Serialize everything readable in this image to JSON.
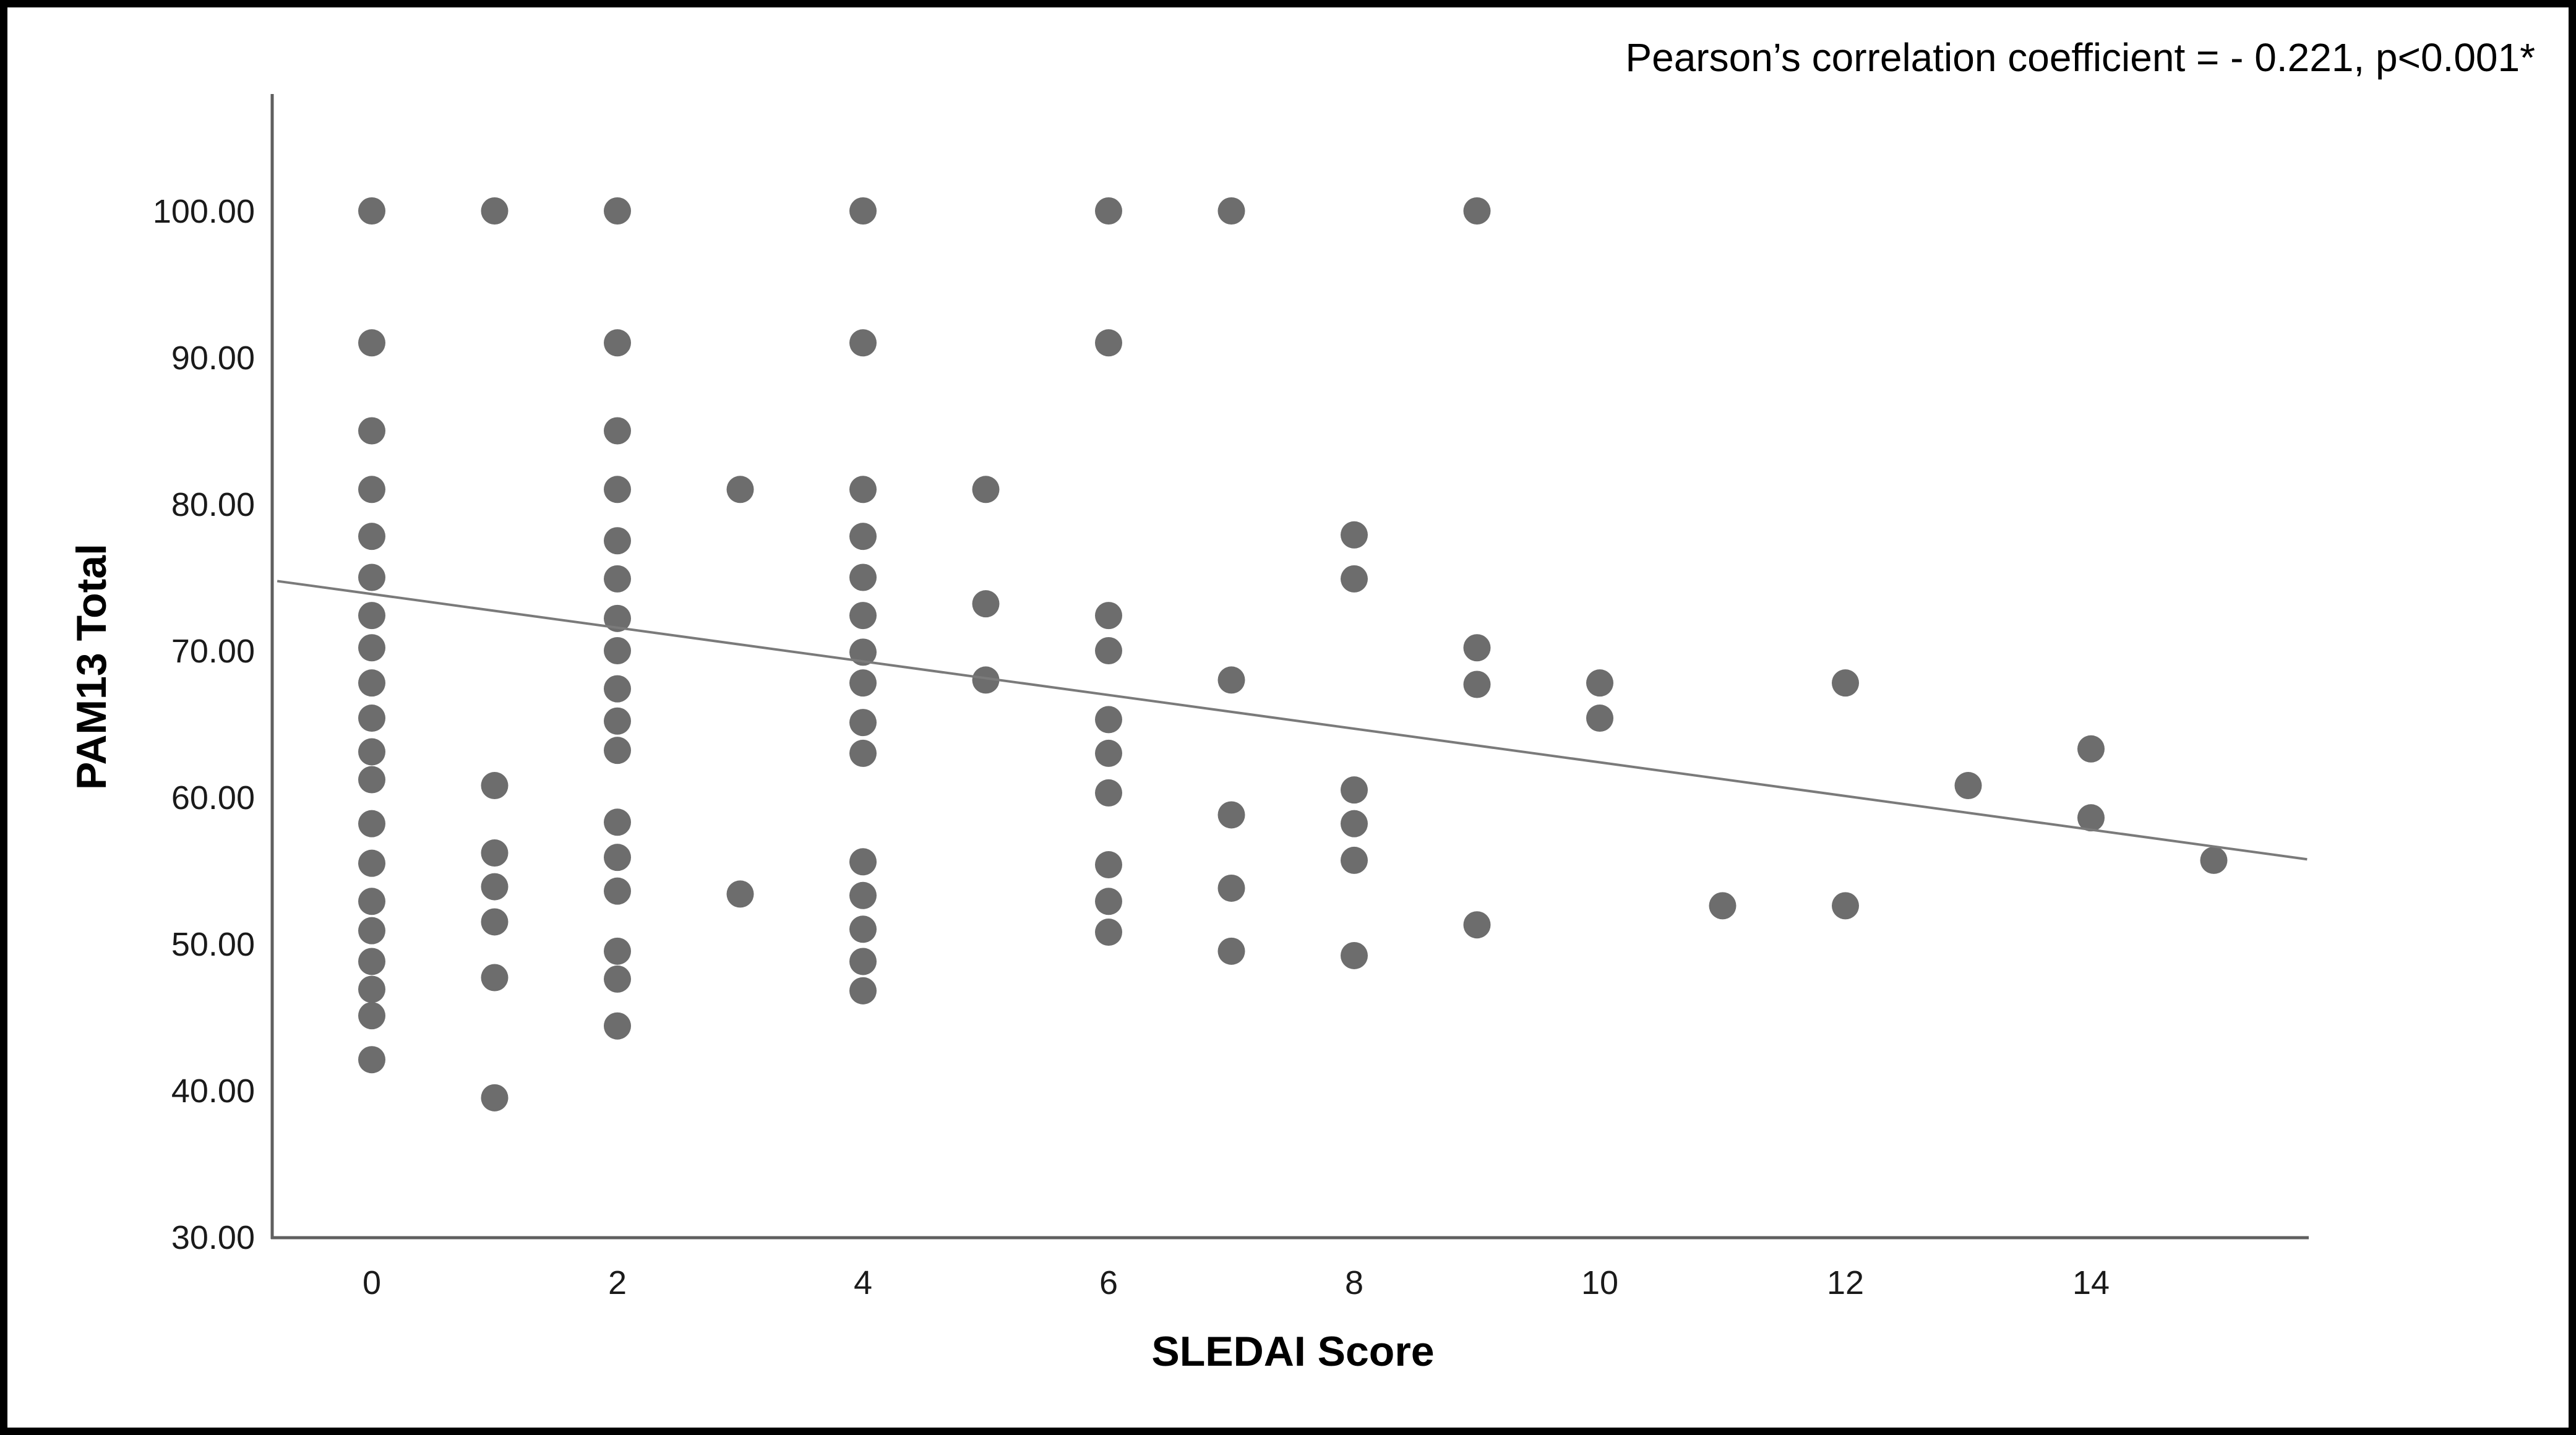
{
  "figure": {
    "background_color": "#ffffff",
    "border_color": "#000000",
    "axis_line_color": "#5f5f5f",
    "tick_label_color": "#1a1a1a"
  },
  "annotation": {
    "text": "Pearson’s correlation coefficient = - 0.221, p<0.001*"
  },
  "chart_data": {
    "type": "scatter",
    "title": "",
    "xlabel": "SLEDAI Score",
    "ylabel": "PAM13 Total",
    "x_ticks": [
      0,
      2,
      4,
      6,
      8,
      10,
      12,
      14
    ],
    "y_ticks": [
      {
        "v": 100,
        "label": "100.00"
      },
      {
        "v": 90,
        "label": "90.00"
      },
      {
        "v": 80,
        "label": "80.00"
      },
      {
        "v": 70,
        "label": "70.00"
      },
      {
        "v": 60,
        "label": "60.00"
      },
      {
        "v": 50,
        "label": "50.00"
      },
      {
        "v": 40,
        "label": "40.00"
      },
      {
        "v": 30,
        "label": "30.00"
      }
    ],
    "xlim": [
      -0.77,
      15.76
    ],
    "ylim": [
      30,
      107.8
    ],
    "grid": false,
    "legend": null,
    "marker_color": "#6d6d6d",
    "marker_radius_px": 22,
    "points": [
      [
        0,
        100
      ],
      [
        0,
        91
      ],
      [
        0,
        85
      ],
      [
        0,
        81
      ],
      [
        0,
        77.8
      ],
      [
        0,
        75
      ],
      [
        0,
        72.4
      ],
      [
        0,
        70.2
      ],
      [
        0,
        67.8
      ],
      [
        0,
        65.4
      ],
      [
        0,
        63.1
      ],
      [
        0,
        61.2
      ],
      [
        0,
        58.2
      ],
      [
        0,
        55.5
      ],
      [
        0,
        52.9
      ],
      [
        0,
        50.9
      ],
      [
        0,
        48.8
      ],
      [
        0,
        46.9
      ],
      [
        0,
        45.1
      ],
      [
        0,
        42.1
      ],
      [
        1,
        100
      ],
      [
        1,
        60.8
      ],
      [
        1,
        56.2
      ],
      [
        1,
        53.9
      ],
      [
        1,
        51.5
      ],
      [
        1,
        47.7
      ],
      [
        1,
        39.5
      ],
      [
        2,
        100
      ],
      [
        2,
        91
      ],
      [
        2,
        85
      ],
      [
        2,
        81
      ],
      [
        2,
        77.5
      ],
      [
        2,
        74.9
      ],
      [
        2,
        72.2
      ],
      [
        2,
        70
      ],
      [
        2,
        67.4
      ],
      [
        2,
        65.2
      ],
      [
        2,
        63.2
      ],
      [
        2,
        58.3
      ],
      [
        2,
        55.9
      ],
      [
        2,
        53.6
      ],
      [
        2,
        49.5
      ],
      [
        2,
        47.6
      ],
      [
        2,
        44.4
      ],
      [
        3,
        81
      ],
      [
        3,
        53.4
      ],
      [
        4,
        100
      ],
      [
        4,
        91
      ],
      [
        4,
        81
      ],
      [
        4,
        77.8
      ],
      [
        4,
        75
      ],
      [
        4,
        72.4
      ],
      [
        4,
        69.9
      ],
      [
        4,
        67.8
      ],
      [
        4,
        65.1
      ],
      [
        4,
        63
      ],
      [
        4,
        55.6
      ],
      [
        4,
        53.3
      ],
      [
        4,
        51
      ],
      [
        4,
        48.8
      ],
      [
        4,
        46.8
      ],
      [
        5,
        81
      ],
      [
        5,
        73.2
      ],
      [
        5,
        68
      ],
      [
        6,
        100
      ],
      [
        6,
        91
      ],
      [
        6,
        72.4
      ],
      [
        6,
        70
      ],
      [
        6,
        65.3
      ],
      [
        6,
        63
      ],
      [
        6,
        60.3
      ],
      [
        6,
        55.4
      ],
      [
        6,
        52.9
      ],
      [
        6,
        50.8
      ],
      [
        7,
        100
      ],
      [
        7,
        68
      ],
      [
        7,
        58.8
      ],
      [
        7,
        53.8
      ],
      [
        7,
        49.5
      ],
      [
        8,
        77.9
      ],
      [
        8,
        74.9
      ],
      [
        8,
        60.5
      ],
      [
        8,
        58.2
      ],
      [
        8,
        55.7
      ],
      [
        8,
        49.2
      ],
      [
        9,
        100
      ],
      [
        9,
        70.2
      ],
      [
        9,
        67.7
      ],
      [
        9,
        51.3
      ],
      [
        10,
        67.8
      ],
      [
        10,
        65.4
      ],
      [
        11,
        52.6
      ],
      [
        12,
        67.8
      ],
      [
        12,
        52.6
      ],
      [
        13,
        60.8
      ],
      [
        14,
        63.3
      ],
      [
        14,
        58.6
      ],
      [
        15,
        55.7
      ]
    ],
    "fit_line": {
      "x1": -0.77,
      "y1": 74.75,
      "x2": 15.76,
      "y2": 55.77,
      "color": "#7a7a7a"
    }
  }
}
